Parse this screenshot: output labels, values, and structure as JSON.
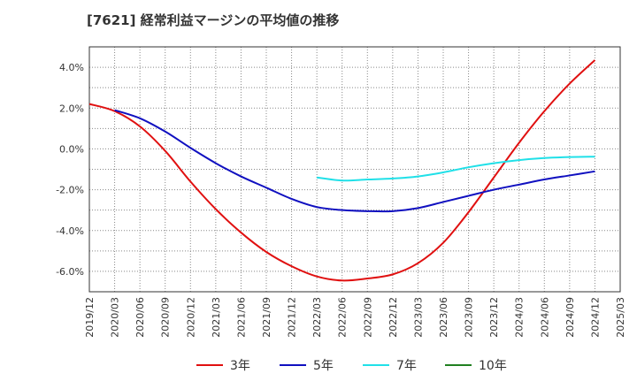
{
  "chart_data": {
    "type": "line",
    "title": "[7621]  経常利益マージンの平均値の推移",
    "xlabel": "",
    "ylabel": "",
    "x_tick_labels": [
      "2019/12",
      "2020/03",
      "2020/06",
      "2020/09",
      "2020/12",
      "2021/03",
      "2021/06",
      "2021/09",
      "2021/12",
      "2022/03",
      "2022/06",
      "2022/09",
      "2022/12",
      "2023/03",
      "2023/06",
      "2023/09",
      "2023/12",
      "2024/03",
      "2024/06",
      "2024/09",
      "2024/12",
      "2025/03"
    ],
    "y_tick_labels": [
      "-6.0%",
      "-4.0%",
      "-2.0%",
      "0.0%",
      "2.0%",
      "4.0%"
    ],
    "ylim": [
      -7.0,
      5.0
    ],
    "grid": true,
    "legend_position": "bottom",
    "series": [
      {
        "name": "3年",
        "color": "#e01010",
        "x": [
          "2019/12",
          "2020/03",
          "2020/06",
          "2020/09",
          "2020/12",
          "2021/03",
          "2021/06",
          "2021/09",
          "2021/12",
          "2022/03",
          "2022/06",
          "2022/09",
          "2022/12",
          "2023/03",
          "2023/06",
          "2023/09",
          "2023/12",
          "2024/03",
          "2024/06",
          "2024/09",
          "2024/12"
        ],
        "values": [
          2.2,
          1.85,
          1.1,
          -0.1,
          -1.6,
          -2.95,
          -4.1,
          -5.05,
          -5.75,
          -6.25,
          -6.45,
          -6.35,
          -6.15,
          -5.6,
          -4.6,
          -3.1,
          -1.4,
          0.3,
          1.85,
          3.2,
          4.35
        ]
      },
      {
        "name": "5年",
        "color": "#1010c0",
        "x": [
          "2020/03",
          "2020/06",
          "2020/09",
          "2020/12",
          "2021/03",
          "2021/06",
          "2021/09",
          "2021/12",
          "2022/03",
          "2022/06",
          "2022/09",
          "2022/12",
          "2023/03",
          "2023/06",
          "2023/09",
          "2023/12",
          "2024/03",
          "2024/06",
          "2024/09",
          "2024/12"
        ],
        "values": [
          1.9,
          1.5,
          0.85,
          0.05,
          -0.7,
          -1.35,
          -1.9,
          -2.45,
          -2.85,
          -3.0,
          -3.05,
          -3.05,
          -2.9,
          -2.6,
          -2.3,
          -2.0,
          -1.75,
          -1.5,
          -1.3,
          -1.1
        ]
      },
      {
        "name": "7年",
        "color": "#20e0e8",
        "x": [
          "2022/03",
          "2022/06",
          "2022/09",
          "2022/12",
          "2023/03",
          "2023/06",
          "2023/09",
          "2023/12",
          "2024/03",
          "2024/06",
          "2024/09",
          "2024/12"
        ],
        "values": [
          -1.4,
          -1.55,
          -1.5,
          -1.45,
          -1.35,
          -1.15,
          -0.9,
          -0.7,
          -0.55,
          -0.45,
          -0.4,
          -0.38
        ]
      },
      {
        "name": "10年",
        "color": "#208020",
        "x": [],
        "values": []
      }
    ]
  }
}
